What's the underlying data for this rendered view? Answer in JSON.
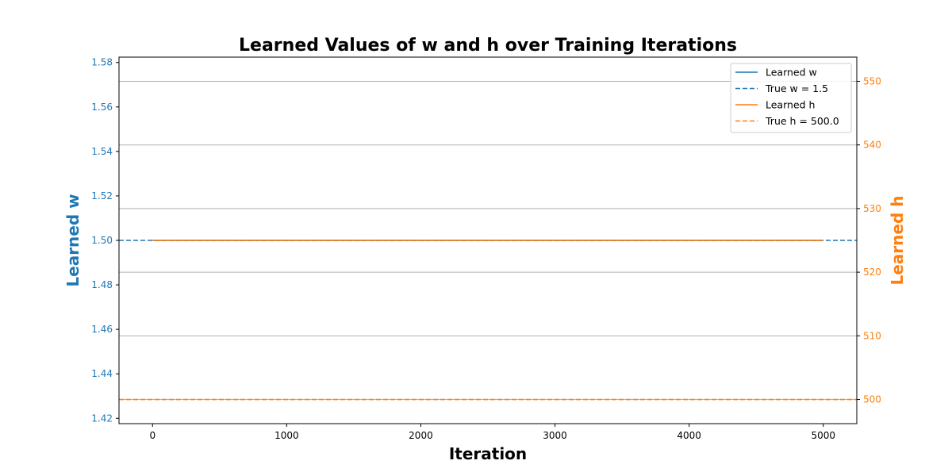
{
  "chart_data": {
    "type": "line",
    "title": "Learned Values of w and h over Training Iterations",
    "xlabel": "Iteration",
    "ylabel_left": "Learned w",
    "ylabel_right": "Learned h",
    "xlim": [
      -250,
      5250
    ],
    "ylim_left": [
      1.4176,
      1.5824
    ],
    "ylim_right": [
      496.2,
      553.8
    ],
    "x_ticks": [
      0,
      1000,
      2000,
      3000,
      4000,
      5000
    ],
    "y_left_ticks": [
      1.42,
      1.44,
      1.46,
      1.48,
      1.5,
      1.52,
      1.54,
      1.56,
      1.58
    ],
    "y_right_ticks": [
      500,
      510,
      520,
      530,
      540,
      550
    ],
    "y_left_tick_labels": [
      "1.42",
      "1.44",
      "1.46",
      "1.48",
      "1.50",
      "1.52",
      "1.54",
      "1.56",
      "1.58"
    ],
    "y_right_tick_labels": [
      "500",
      "510",
      "520",
      "530",
      "540",
      "550"
    ],
    "grid": "horizontal",
    "legend_position": "top-right",
    "series": [
      {
        "name": "Learned w",
        "axis": "left",
        "style": "solid",
        "color": "#1f77b4",
        "x": [
          0,
          5000
        ],
        "y": [
          1.5,
          1.5
        ]
      },
      {
        "name": "True w = 1.5",
        "axis": "left",
        "style": "dashed",
        "color": "#1f77b4",
        "x": [
          -250,
          5250
        ],
        "y": [
          1.5,
          1.5
        ]
      },
      {
        "name": "Learned h",
        "axis": "left",
        "style": "solid",
        "color": "#ff7f0e",
        "x": [
          0,
          5000
        ],
        "y": [
          1.5,
          1.5
        ]
      },
      {
        "name": "True h = 500.0",
        "axis": "right",
        "style": "dashed",
        "color": "#ff7f0e",
        "x": [
          -250,
          5250
        ],
        "y": [
          500,
          500
        ]
      }
    ],
    "colors": {
      "left_axis": "#1f77b4",
      "right_axis": "#ff7f0e",
      "grid": "#b0b0b0"
    }
  }
}
